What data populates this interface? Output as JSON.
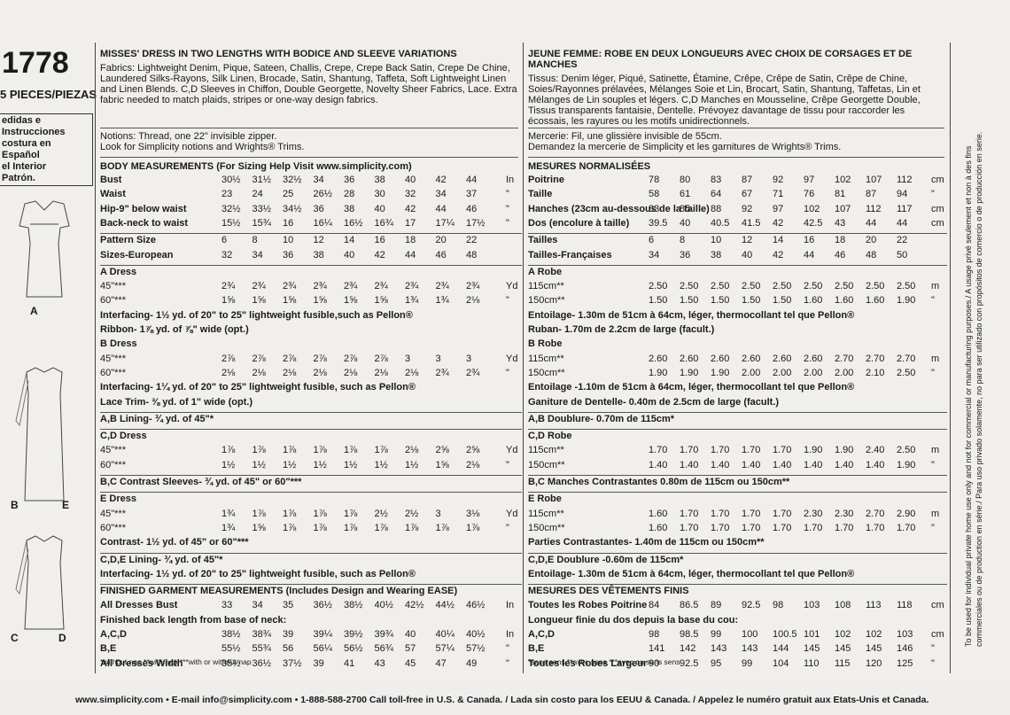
{
  "header": {
    "pattern_number": "1778",
    "pieces": "5 PIECES/PIEZAS"
  },
  "left_margin": {
    "spanish_lines": [
      "edidas e Instrucciones",
      "costura en Español",
      "el Interior",
      "Patrón."
    ]
  },
  "figure_labels": [
    "A",
    "B",
    "E",
    "C",
    "D"
  ],
  "english": {
    "title": "MISSES' DRESS IN TWO LENGTHS WITH BODICE AND SLEEVE VARIATIONS",
    "fabrics": "Fabrics: Lightweight Denim, Pique, Sateen, Challis, Crepe, Crepe Back Satin, Crepe De Chine, Laundered Silks-Rayons, Silk Linen, Brocade, Satin, Shantung, Taffeta, Soft Lightweight Linen and Linen Blends. C,D Sleeves in Chiffon, Double Georgette, Novelty Sheer Fabrics, Lace. Extra fabric needed to match plaids, stripes or one-way design fabrics.",
    "notions": "Notions: Thread, one 22\" invisible zipper.",
    "notions2": "Look for Simplicity notions and Wrights® Trims.",
    "body_heading": "BODY MEASUREMENTS (For Sizing Help Visit www.simplicity.com)",
    "rows": [
      {
        "label": "Bust",
        "vals": [
          "30½",
          "31½",
          "32½",
          "34",
          "36",
          "38",
          "40",
          "42",
          "44"
        ],
        "unit": "In"
      },
      {
        "label": "Waist",
        "vals": [
          "23",
          "24",
          "25",
          "26½",
          "28",
          "30",
          "32",
          "34",
          "37"
        ],
        "unit": "\""
      },
      {
        "label": "Hip-9\" below waist",
        "vals": [
          "32½",
          "33½",
          "34½",
          "36",
          "38",
          "40",
          "42",
          "44",
          "46"
        ],
        "unit": "\""
      },
      {
        "label": "Back-neck to waist",
        "vals": [
          "15½",
          "15¾",
          "16",
          "16¼",
          "16½",
          "16¾",
          "17",
          "17¼",
          "17½"
        ],
        "unit": "\""
      },
      {
        "label": "Pattern Size",
        "vals": [
          "6",
          "8",
          "10",
          "12",
          "14",
          "16",
          "18",
          "20",
          "22"
        ],
        "unit": ""
      },
      {
        "label": "Sizes-European",
        "vals": [
          "32",
          "34",
          "36",
          "38",
          "40",
          "42",
          "44",
          "46",
          "48"
        ],
        "unit": ""
      },
      {
        "label": "A Dress",
        "vals": [],
        "unit": ""
      },
      {
        "label": "45\"***",
        "vals": [
          "2¾",
          "2¾",
          "2¾",
          "2¾",
          "2¾",
          "2¾",
          "2¾",
          "2¾",
          "2¾"
        ],
        "unit": "Yd"
      },
      {
        "label": "60\"***",
        "vals": [
          "1⅝",
          "1⅝",
          "1⅝",
          "1⅝",
          "1⅝",
          "1⅝",
          "1¾",
          "1¾",
          "2⅛"
        ],
        "unit": "\""
      },
      {
        "label": "Interfacing- 1½ yd. of 20\" to 25\" lightweight fusible,such as Pellon®",
        "vals": [],
        "unit": ""
      },
      {
        "label": "Ribbon- 1⅞ yd. of ⅞\" wide (opt.)",
        "vals": [],
        "unit": ""
      },
      {
        "label": "B Dress",
        "vals": [],
        "unit": ""
      },
      {
        "label": "45\"***",
        "vals": [
          "2⅞",
          "2⅞",
          "2⅞",
          "2⅞",
          "2⅞",
          "2⅞",
          "3",
          "3",
          "3"
        ],
        "unit": "Yd"
      },
      {
        "label": "60\"***",
        "vals": [
          "2⅛",
          "2⅛",
          "2⅛",
          "2⅛",
          "2⅛",
          "2⅛",
          "2⅛",
          "2¾",
          "2¾"
        ],
        "unit": "\""
      },
      {
        "label": "Interfacing- 1¼ yd. of 20\" to 25\" lightweight fusible, such as Pellon®",
        "vals": [],
        "unit": ""
      },
      {
        "label": "Lace Trim- ⅜ yd. of 1\" wide (opt.)",
        "vals": [],
        "unit": ""
      },
      {
        "label": "A,B Lining- ¾ yd. of 45\"*",
        "vals": [],
        "unit": ""
      },
      {
        "label": "C,D Dress",
        "vals": [],
        "unit": ""
      },
      {
        "label": "45\"***",
        "vals": [
          "1⅞",
          "1⅞",
          "1⅞",
          "1⅞",
          "1⅞",
          "1⅞",
          "2⅛",
          "2⅝",
          "2⅝"
        ],
        "unit": "Yd"
      },
      {
        "label": "60\"***",
        "vals": [
          "1½",
          "1½",
          "1½",
          "1½",
          "1½",
          "1½",
          "1½",
          "1⅝",
          "2⅛"
        ],
        "unit": "\""
      },
      {
        "label": "B,C Contrast Sleeves- ¾ yd. of 45\" or 60\"***",
        "vals": [],
        "unit": ""
      },
      {
        "label": "E Dress",
        "vals": [],
        "unit": ""
      },
      {
        "label": "45\"***",
        "vals": [
          "1¾",
          "1⅞",
          "1⅞",
          "1⅞",
          "1⅞",
          "2½",
          "2½",
          "3",
          "3⅛"
        ],
        "unit": "Yd"
      },
      {
        "label": "60\"***",
        "vals": [
          "1¾",
          "1⅝",
          "1⅞",
          "1⅞",
          "1⅞",
          "1⅞",
          "1⅞",
          "1⅞",
          "1⅞"
        ],
        "unit": "\""
      },
      {
        "label": "Contrast- 1½ yd. of 45\" or 60\"***",
        "vals": [],
        "unit": ""
      },
      {
        "label": "C,D,E Lining- ¾ yd. of 45\"*",
        "vals": [],
        "unit": ""
      },
      {
        "label": "Interfacing- 1½ yd. of 20\" to 25\" lightweight fusible, such as Pellon®",
        "vals": [],
        "unit": ""
      },
      {
        "label": "FINISHED GARMENT MEASUREMENTS (Includes Design and Wearing EASE)",
        "vals": [],
        "unit": ""
      },
      {
        "label": "All Dresses Bust",
        "vals": [
          "33",
          "34",
          "35",
          "36½",
          "38½",
          "40½",
          "42½",
          "44½",
          "46½"
        ],
        "unit": "In"
      },
      {
        "label": "Finished back length from base of neck:",
        "vals": [],
        "unit": ""
      },
      {
        "label": "A,C,D",
        "vals": [
          "38½",
          "38¾",
          "39",
          "39¼",
          "39½",
          "39¾",
          "40",
          "40¼",
          "40½"
        ],
        "unit": "In"
      },
      {
        "label": "B,E",
        "vals": [
          "55½",
          "55¾",
          "56",
          "56¼",
          "56½",
          "56¾",
          "57",
          "57¼",
          "57½"
        ],
        "unit": "\""
      },
      {
        "label": "All Dresses Width",
        "vals": [
          "35½",
          "36½",
          "37½",
          "39",
          "41",
          "43",
          "45",
          "47",
          "49"
        ],
        "unit": "\""
      }
    ],
    "footnote": "*without nap   **with nap   ***with or without nap"
  },
  "french": {
    "title": "JEUNE FEMME: ROBE EN DEUX LONGUEURS AVEC CHOIX DE CORSAGES ET DE MANCHES",
    "fabrics": "Tissus: Denim léger, Piqué, Satinette, Étamine, Crêpe, Crêpe de Satin, Crêpe de Chine, Soies/Rayonnes prélavées, Mélanges Soie et Lin, Brocart, Satin, Shantung, Taffetas, Lin et Mélanges de Lin souples et légers. C,D Manches en Mousseline, Crêpe Georgette Double, Tissus transparents fantaisie, Dentelle. Prévoyez davantage de tissu pour raccorder les écossais, les rayures ou les motifs unidirectionnels.",
    "notions": "Mercerie: Fil, une glissière invisible de 55cm.",
    "notions2": "Demandez la mercerie de Simplicity et les garnitures de Wrights® Trims.",
    "body_heading": "MESURES NORMALISÉES",
    "rows": [
      {
        "label": "Poitrine",
        "vals": [
          "78",
          "80",
          "83",
          "87",
          "92",
          "97",
          "102",
          "107",
          "112"
        ],
        "unit": "cm"
      },
      {
        "label": "Taille",
        "vals": [
          "58",
          "61",
          "64",
          "67",
          "71",
          "76",
          "81",
          "87",
          "94"
        ],
        "unit": "\""
      },
      {
        "label": "Hanches (23cm au-dessous de la taille)",
        "vals": [
          "83",
          "85",
          "88",
          "92",
          "97",
          "102",
          "107",
          "112",
          "117"
        ],
        "unit": "cm"
      },
      {
        "label": "Dos (encolure à taille)",
        "vals": [
          "39.5",
          "40",
          "40.5",
          "41.5",
          "42",
          "42.5",
          "43",
          "44",
          "44"
        ],
        "unit": "cm"
      },
      {
        "label": "Tailles",
        "vals": [
          "6",
          "8",
          "10",
          "12",
          "14",
          "16",
          "18",
          "20",
          "22"
        ],
        "unit": ""
      },
      {
        "label": "Tailles-Françaises",
        "vals": [
          "34",
          "36",
          "38",
          "40",
          "42",
          "44",
          "46",
          "48",
          "50"
        ],
        "unit": ""
      },
      {
        "label": "A Robe",
        "vals": [],
        "unit": ""
      },
      {
        "label": "115cm**",
        "vals": [
          "2.50",
          "2.50",
          "2.50",
          "2.50",
          "2.50",
          "2.50",
          "2.50",
          "2.50",
          "2.50"
        ],
        "unit": "m"
      },
      {
        "label": "150cm**",
        "vals": [
          "1.50",
          "1.50",
          "1.50",
          "1.50",
          "1.50",
          "1.60",
          "1.60",
          "1.60",
          "1.90"
        ],
        "unit": "\""
      },
      {
        "label": "Entoilage- 1.30m de 51cm à 64cm, léger, thermocollant tel que Pellon®",
        "vals": [],
        "unit": ""
      },
      {
        "label": "Ruban- 1.70m de 2.2cm de large (facult.)",
        "vals": [],
        "unit": ""
      },
      {
        "label": "B Robe",
        "vals": [],
        "unit": ""
      },
      {
        "label": "115cm**",
        "vals": [
          "2.60",
          "2.60",
          "2.60",
          "2.60",
          "2.60",
          "2.60",
          "2.70",
          "2.70",
          "2.70"
        ],
        "unit": "m"
      },
      {
        "label": "150cm**",
        "vals": [
          "1.90",
          "1.90",
          "1.90",
          "2.00",
          "2.00",
          "2.00",
          "2.00",
          "2.10",
          "2.50"
        ],
        "unit": "\""
      },
      {
        "label": "Entoilage -1.10m de 51cm à 64cm, léger, thermocollant tel que Pellon®",
        "vals": [],
        "unit": ""
      },
      {
        "label": "Ganiture de Dentelle- 0.40m de 2.5cm de large (facult.)",
        "vals": [],
        "unit": ""
      },
      {
        "label": "A,B Doublure- 0.70m de 115cm*",
        "vals": [],
        "unit": ""
      },
      {
        "label": "C,D Robe",
        "vals": [],
        "unit": ""
      },
      {
        "label": "115cm**",
        "vals": [
          "1.70",
          "1.70",
          "1.70",
          "1.70",
          "1.70",
          "1.90",
          "1.90",
          "2.40",
          "2.50"
        ],
        "unit": "m"
      },
      {
        "label": "150cm**",
        "vals": [
          "1.40",
          "1.40",
          "1.40",
          "1.40",
          "1.40",
          "1.40",
          "1.40",
          "1.40",
          "1.90"
        ],
        "unit": "\""
      },
      {
        "label": "B,C Manches Contrastantes 0.80m de 115cm ou 150cm**",
        "vals": [],
        "unit": ""
      },
      {
        "label": "E Robe",
        "vals": [],
        "unit": ""
      },
      {
        "label": "115cm**",
        "vals": [
          "1.60",
          "1.70",
          "1.70",
          "1.70",
          "1.70",
          "2.30",
          "2.30",
          "2.70",
          "2.90"
        ],
        "unit": "m"
      },
      {
        "label": "150cm**",
        "vals": [
          "1.60",
          "1.70",
          "1.70",
          "1.70",
          "1.70",
          "1.70",
          "1.70",
          "1.70",
          "1.70"
        ],
        "unit": "\""
      },
      {
        "label": "Parties Contrastantes- 1.40m de 115cm ou 150cm**",
        "vals": [],
        "unit": ""
      },
      {
        "label": "C,D,E Doublure -0.60m de 115cm*",
        "vals": [],
        "unit": ""
      },
      {
        "label": "Entoilage- 1.30m de 51cm à 64cm, léger, thermocollant tel que Pellon®",
        "vals": [],
        "unit": ""
      },
      {
        "label": "MESURES DES VÊTEMENTS FINIS",
        "vals": [],
        "unit": ""
      },
      {
        "label": "Toutes les Robes Poitrine",
        "vals": [
          "84",
          "86.5",
          "89",
          "92.5",
          "98",
          "103",
          "108",
          "113",
          "118"
        ],
        "unit": "cm"
      },
      {
        "label": "Longueur finie du dos depuis la base du cou:",
        "vals": [],
        "unit": ""
      },
      {
        "label": "A,C,D",
        "vals": [
          "98",
          "98.5",
          "99",
          "100",
          "100.5",
          "101",
          "102",
          "102",
          "103"
        ],
        "unit": "cm"
      },
      {
        "label": "B,E",
        "vals": [
          "141",
          "142",
          "143",
          "143",
          "144",
          "145",
          "145",
          "145",
          "146"
        ],
        "unit": "\""
      },
      {
        "label": "Toutes les Robes Largeur",
        "vals": [
          "90",
          "92.5",
          "95",
          "99",
          "104",
          "110",
          "115",
          "120",
          "125"
        ],
        "unit": "\""
      }
    ],
    "footnote": "*sans sens   **avec sens   ***avec ou sans sens"
  },
  "side_note": [
    "To be used for individual private home use only and not for commercial or manufacturing purposes./ A usage privé seulement et non à des fins",
    "commerciales ou de production en série./ Para uso privado solamente, no para ser utilizado con propósitos de comercio o de producción en serie."
  ],
  "footer": "www.simplicity.com • E-mail info@simplicity.com • 1-888-588-2700 Call toll-free in U.S. & Canada. / Lada sin costo para los EEUU & Canada. / Appelez le numéro gratuit aux Etats-Unis et Canada."
}
